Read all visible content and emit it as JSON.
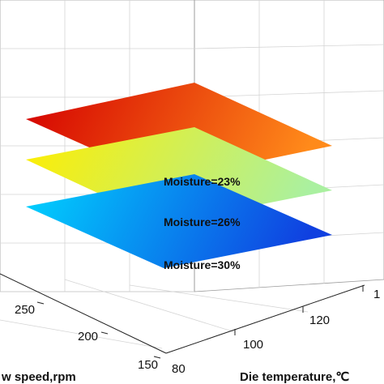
{
  "chart_data": {
    "type": "surface3d",
    "x_axis": {
      "label": "Die temperature,℃",
      "ticks": [
        "80",
        "100",
        "120",
        "1"
      ]
    },
    "y_axis": {
      "label": "w speed,rpm",
      "ticks": [
        "150",
        "200",
        "250"
      ]
    },
    "series": [
      {
        "name": "Moisture=23%",
        "colors": [
          "#d40000",
          "#ff8a1a"
        ]
      },
      {
        "name": "Moisture=26%",
        "colors": [
          "#ffee00",
          "#aaf0a0"
        ]
      },
      {
        "name": "Moisture=30%",
        "colors": [
          "#00d5ff",
          "#1040e0"
        ]
      }
    ],
    "grid": true
  }
}
